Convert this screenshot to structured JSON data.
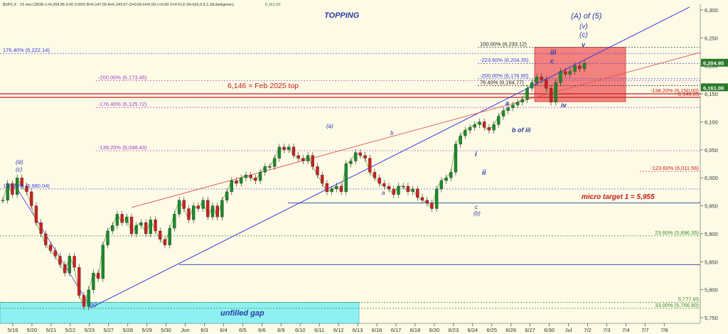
{
  "header": {
    "text": "$SPX.X - 15 min  CBOE  L=6,204.95  0.00  0.00%  B=6,147.00  A=6,243.67  O=0.00  H=0.00  L=0.00  V=0  FLD (fh+l)/3,0.5,1,18,darkgreen)",
    "fld_value": "6,161.00"
  },
  "annotations": {
    "title": "TOPPING",
    "wave_A5": "(A) of (5)",
    "wave_v_paren": "(v)",
    "wave_c_paren": "(c)",
    "feb_top": "6,146 = Feb 2025 top",
    "micro_target": "micro target 1 = 5,955",
    "unfilled_gap": "unfilled gap",
    "wave_iii_paren": "(iii)",
    "wave_c_paren_left": "(c)",
    "wave_iv_paren": "(iv)",
    "wave_a_paren": "(a)",
    "wave_b": "b",
    "wave_a": "a",
    "wave_c": "c",
    "wave_b_paren": "(b)",
    "wave_i": "i",
    "wave_ii": "ii",
    "wave_a2": "a",
    "wave_b_of_iii": "b of iii",
    "wave_III": "iii",
    "wave_c2": "c",
    "wave_iv": "iv",
    "wave_v": "v"
  },
  "chart_data": {
    "type": "line",
    "title": "TOPPING",
    "symbol": "$SPX.X - 15 min",
    "ylim": [
      5740,
      6310
    ],
    "x_categories": [
      "5/19",
      "5/20",
      "5/21",
      "5/22",
      "5/23",
      "5/27",
      "5/28",
      "5/29",
      "5/30",
      "Jun",
      "6/3",
      "6/4",
      "6/5",
      "6/6",
      "6/9",
      "6/10",
      "6/11",
      "6/12",
      "6/13",
      "6/16",
      "6/17",
      "6/18",
      "6/20",
      "6/23",
      "6/24",
      "6/25",
      "6/26",
      "6/27",
      "6/30",
      "Jul",
      "7/2",
      "7/3",
      "7/4",
      "7/7",
      "7/8"
    ],
    "y_ticks": [
      5750,
      5800,
      5850,
      5900,
      5950,
      6000,
      6050,
      6100,
      6150,
      6200,
      6250,
      6300
    ],
    "y_tick_labels": [
      "5,750",
      "5,800",
      "5,850",
      "5,900",
      "5,950",
      "6,000",
      "6,050",
      "6,100",
      "6,150",
      "6,200",
      "6,250",
      "6,300"
    ],
    "last_price_label": "6,204.95",
    "fld_label": "6,161.00",
    "fib_levels": [
      {
        "label": "176.40% (6,222.14)",
        "value": 6222.14,
        "color": "#3a3adb"
      },
      {
        "label": "-200.00% (6,173.46)",
        "value": 6173.46,
        "color": "#9a40c8"
      },
      {
        "label": "-176.40% (6,125.72)",
        "value": 6125.72,
        "color": "#9a40c8"
      },
      {
        "label": "-138.20% (6,048.43)",
        "value": 6048.43,
        "color": "#9a40c8"
      },
      {
        "label": "138.20% (5,980.04)",
        "value": 5980.04,
        "color": "#3a3adb"
      },
      {
        "label": "100.00% (6,233.12)",
        "value": 6233.12,
        "color": "#222222"
      },
      {
        "label": "-223.60% (6,204.35)",
        "value": 6204.35,
        "color": "#3a3adb"
      },
      {
        "label": "-200.00% (6,176.90)",
        "value": 6176.9,
        "color": "#3a3adb"
      },
      {
        "label": "76.40% (6,164.77)",
        "value": 6164.77,
        "color": "#222222"
      },
      {
        "label": "-138.20% (6,150.00)",
        "value": 6150.0,
        "color": "#c02020"
      },
      {
        "label": "6,143.65",
        "value": 6143.65,
        "color": "#c02020"
      },
      {
        "label": "-123.60% (6,011.56)",
        "value": 6011.56,
        "color": "#c02020"
      },
      {
        "label": "23.60% (5,896.35)",
        "value": 5896.35,
        "color": "#3a8a2a"
      },
      {
        "label": "33.00% (5,766.80)",
        "value": 5766.8,
        "color": "#3a8a2a"
      },
      {
        "label": "5,777.65",
        "value": 5777.65,
        "color": "#3a8a2a"
      }
    ],
    "price_path": [
      5960,
      5990,
      5970,
      6000,
      5985,
      5975,
      5950,
      5920,
      5900,
      5880,
      5870,
      5860,
      5845,
      5830,
      5860,
      5840,
      5790,
      5770,
      5800,
      5830,
      5820,
      5880,
      5905,
      5915,
      5935,
      5920,
      5930,
      5900,
      5915,
      5920,
      5900,
      5925,
      5905,
      5890,
      5880,
      5910,
      5935,
      5960,
      5945,
      5925,
      5950,
      5945,
      5960,
      5930,
      5950,
      5930,
      5960,
      5975,
      5995,
      5990,
      6000,
      6005,
      6000,
      5995,
      6010,
      6020,
      6020,
      6035,
      6055,
      6050,
      6055,
      6040,
      6035,
      6030,
      6040,
      6020,
      6005,
      5990,
      5975,
      5980,
      5985,
      5975,
      6025,
      6030,
      6045,
      6040,
      6035,
      6010,
      6000,
      5990,
      5985,
      5980,
      5970,
      5985,
      5985,
      5975,
      5980,
      5965,
      5960,
      5955,
      5945,
      5980,
      5995,
      6000,
      6010,
      6060,
      6075,
      6085,
      6090,
      6095,
      6100,
      6090,
      6085,
      6095,
      6110,
      6120,
      6125,
      6130,
      6135,
      6140,
      6160,
      6170,
      6180,
      6175,
      6160,
      6135,
      6170,
      6190,
      6185,
      6190,
      6200,
      6195,
      6205
    ]
  }
}
